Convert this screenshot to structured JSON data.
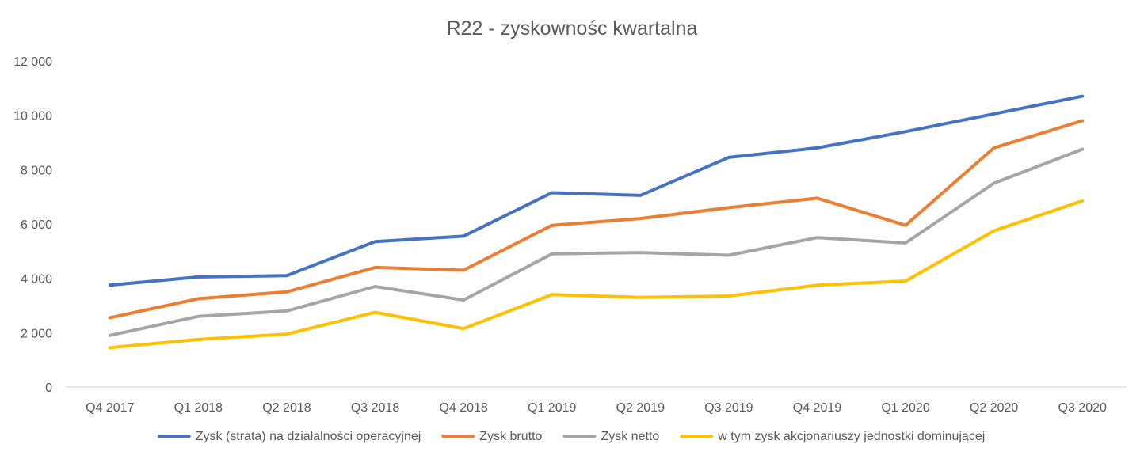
{
  "chart_data": {
    "type": "line",
    "title": "R22 - zyskownośc kwartalna",
    "xlabel": "",
    "ylabel": "",
    "categories": [
      "Q4 2017",
      "Q1 2018",
      "Q2 2018",
      "Q3 2018",
      "Q4 2018",
      "Q1 2019",
      "Q2 2019",
      "Q3 2019",
      "Q4 2019",
      "Q1 2020",
      "Q2 2020",
      "Q3 2020"
    ],
    "ylim": [
      0,
      12000
    ],
    "yticks": [
      0,
      2000,
      4000,
      6000,
      8000,
      10000,
      12000
    ],
    "ytick_labels": [
      "0",
      "2 000",
      "4 000",
      "6 000",
      "8 000",
      "10 000",
      "12 000"
    ],
    "grid": false,
    "legend_position": "bottom",
    "series": [
      {
        "name": "Zysk (strata) na działalności operacyjnej",
        "color": "#4472C4",
        "values": [
          3750,
          4050,
          4100,
          5350,
          5550,
          7150,
          7050,
          8450,
          8800,
          9400,
          10050,
          10700
        ]
      },
      {
        "name": "Zysk brutto",
        "color": "#ED7D31",
        "values": [
          2550,
          3250,
          3500,
          4400,
          4300,
          5950,
          6200,
          6600,
          6950,
          5950,
          8800,
          9800
        ]
      },
      {
        "name": "Zysk netto",
        "color": "#A5A5A5",
        "values": [
          1900,
          2600,
          2800,
          3700,
          3200,
          4900,
          4950,
          4850,
          5500,
          5300,
          7500,
          8750
        ]
      },
      {
        "name": "w tym zysk akcjonariuszy jednostki dominującej",
        "color": "#FFC000",
        "values": [
          1450,
          1750,
          1950,
          2750,
          2150,
          3400,
          3300,
          3350,
          3750,
          3900,
          5750,
          6850
        ]
      }
    ]
  }
}
